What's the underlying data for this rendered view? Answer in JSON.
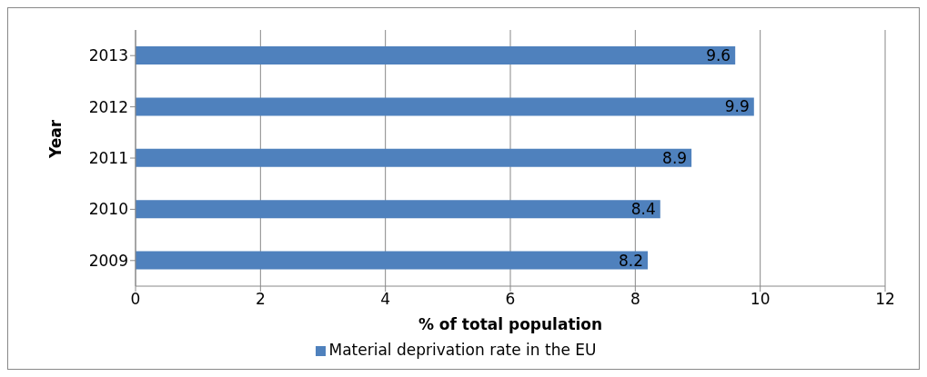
{
  "chart_data": {
    "type": "bar",
    "orientation": "horizontal",
    "categories": [
      "2013",
      "2012",
      "2011",
      "2010",
      "2009"
    ],
    "series": [
      {
        "name": "Material deprivation rate in the EU",
        "color": "#4f81bd",
        "values": [
          9.6,
          9.9,
          8.9,
          8.4,
          8.2
        ]
      }
    ],
    "xlabel": "% of total population",
    "ylabel": "Year",
    "xlim": [
      0,
      12
    ],
    "xticks": [
      0,
      2,
      4,
      6,
      8,
      10,
      12
    ],
    "grid": "x",
    "legend": "bottom",
    "data_labels": true
  }
}
